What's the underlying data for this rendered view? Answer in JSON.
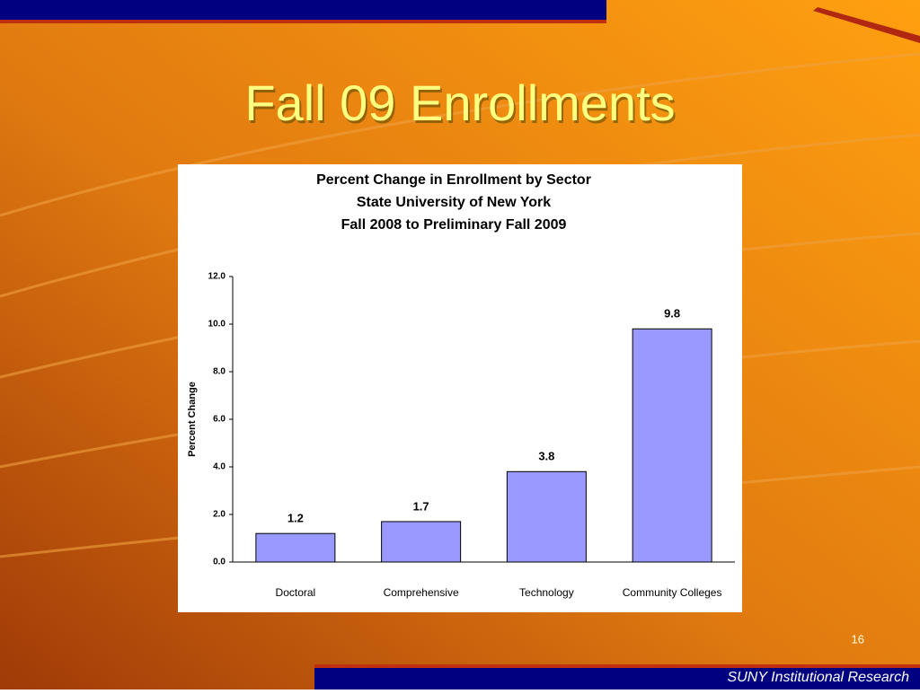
{
  "slide": {
    "title": "Fall 09 Enrollments",
    "page_number": "16",
    "footer": "SUNY Institutional Research"
  },
  "chart_data": {
    "type": "bar",
    "title": "Percent Change in Enrollment by Sector",
    "subtitle": [
      "State University of New York",
      "Fall 2008 to Preliminary Fall 2009"
    ],
    "ylabel": "Percent Change",
    "categories": [
      "Doctoral",
      "Comprehensive",
      "Technology",
      "Community Colleges"
    ],
    "values": [
      1.2,
      1.7,
      3.8,
      9.8
    ],
    "color": "#9999ff",
    "ylim": [
      0,
      12
    ],
    "yticks": [
      {
        "value": 0,
        "label": "0.0"
      },
      {
        "value": 2,
        "label": "2.0"
      },
      {
        "value": 4,
        "label": "4.0"
      },
      {
        "value": 6,
        "label": "6.0"
      },
      {
        "value": 8,
        "label": "8.0"
      },
      {
        "value": 10,
        "label": "10.0"
      },
      {
        "value": 12,
        "label": "12.0"
      }
    ],
    "grid": false
  }
}
